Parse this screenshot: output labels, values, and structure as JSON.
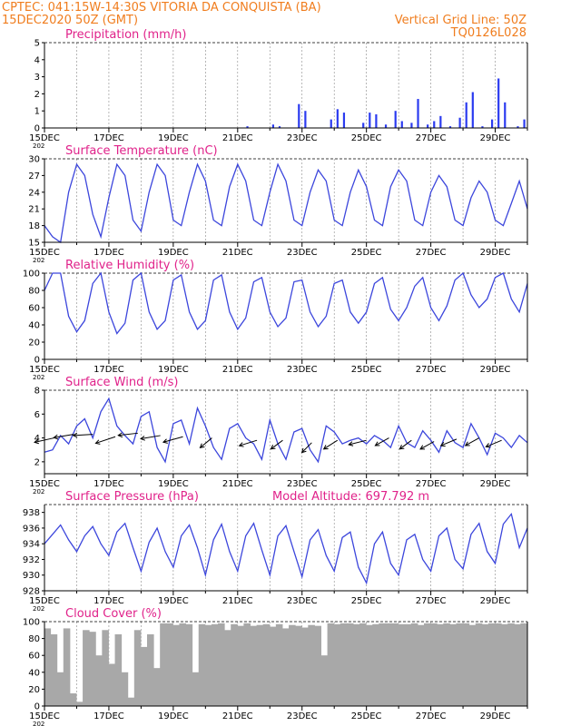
{
  "header": {
    "line1": "CPTEC:   041:15W-14:30S   VITORIA DA CONQUISTA (BA)",
    "line2_left": "15DEC2020 50Z (GMT)",
    "line2_right": "Vertical Grid Line: 50Z",
    "line3_right": "TQ0126L028"
  },
  "x_axis": {
    "labels": [
      "15DEC",
      "17DEC",
      "19DEC",
      "21DEC",
      "23DEC",
      "25DEC",
      "27DEC",
      "29DEC"
    ],
    "sub_label": "202",
    "days": 15
  },
  "colors": {
    "line": "#3c46dc",
    "bar": "#2b3bf0",
    "cloud": "#a8a8a8",
    "title": "#e0228a",
    "header": "#f07d1e",
    "wind_arrow": "#000000"
  },
  "chart_data": [
    {
      "type": "bar",
      "title": "Precipitation  (mm/h)",
      "ylim": [
        0,
        5
      ],
      "yticks": [
        0,
        1,
        2,
        3,
        4,
        5
      ],
      "x": [
        6.3,
        7.1,
        7.3,
        7.9,
        8.1,
        8.9,
        9.1,
        9.3,
        9.9,
        10.1,
        10.3,
        10.6,
        10.9,
        11.1,
        11.4,
        11.6,
        11.9,
        12.1,
        12.3,
        12.6,
        12.9,
        13.1,
        13.3,
        13.6,
        13.9,
        14.1,
        14.3,
        14.7,
        14.9
      ],
      "values": [
        0.1,
        0.2,
        0.1,
        1.4,
        1.0,
        0.5,
        1.1,
        0.9,
        0.3,
        0.9,
        0.8,
        0.2,
        1.0,
        0.4,
        0.3,
        1.7,
        0.2,
        0.4,
        0.7,
        0.1,
        0.6,
        1.5,
        2.1,
        0.1,
        0.5,
        2.9,
        1.5,
        0.1,
        0.5
      ]
    },
    {
      "type": "line",
      "title": "Surface Temperature (nC)",
      "ylim": [
        15,
        30
      ],
      "yticks": [
        15,
        18,
        21,
        24,
        27,
        30
      ],
      "x": [
        0,
        0.25,
        0.5,
        0.75,
        1,
        1.25,
        1.5,
        1.75,
        2,
        2.25,
        2.5,
        2.75,
        3,
        3.25,
        3.5,
        3.75,
        4,
        4.25,
        4.5,
        4.75,
        5,
        5.25,
        5.5,
        5.75,
        6,
        6.25,
        6.5,
        6.75,
        7,
        7.25,
        7.5,
        7.75,
        8,
        8.25,
        8.5,
        8.75,
        9,
        9.25,
        9.5,
        9.75,
        10,
        10.25,
        10.5,
        10.75,
        11,
        11.25,
        11.5,
        11.75,
        12,
        12.25,
        12.5,
        12.75,
        13,
        13.25,
        13.5,
        13.75,
        14,
        14.25,
        14.5,
        14.75,
        15
      ],
      "values": [
        18,
        16,
        15,
        24,
        29,
        27,
        20,
        16,
        23,
        29,
        27,
        19,
        17,
        24,
        29,
        27,
        19,
        18,
        24,
        29,
        26,
        19,
        18,
        25,
        29,
        26,
        19,
        18,
        24,
        29,
        26,
        19,
        18,
        24,
        28,
        26,
        19,
        18,
        24,
        28,
        25,
        19,
        18,
        25,
        28,
        26,
        19,
        18,
        24,
        27,
        25,
        19,
        18,
        23,
        26,
        24,
        19,
        18,
        22,
        26,
        21
      ]
    },
    {
      "type": "line",
      "title": "Relative Humidity  (%)",
      "ylim": [
        0,
        100
      ],
      "yticks": [
        0,
        20,
        40,
        60,
        80,
        100
      ],
      "x": [
        0,
        0.25,
        0.5,
        0.75,
        1,
        1.25,
        1.5,
        1.75,
        2,
        2.25,
        2.5,
        2.75,
        3,
        3.25,
        3.5,
        3.75,
        4,
        4.25,
        4.5,
        4.75,
        5,
        5.25,
        5.5,
        5.75,
        6,
        6.25,
        6.5,
        6.75,
        7,
        7.25,
        7.5,
        7.75,
        8,
        8.25,
        8.5,
        8.75,
        9,
        9.25,
        9.5,
        9.75,
        10,
        10.25,
        10.5,
        10.75,
        11,
        11.25,
        11.5,
        11.75,
        12,
        12.25,
        12.5,
        12.75,
        13,
        13.25,
        13.5,
        13.75,
        14,
        14.25,
        14.5,
        14.75,
        15
      ],
      "values": [
        80,
        100,
        100,
        50,
        32,
        45,
        88,
        100,
        55,
        30,
        42,
        92,
        100,
        55,
        35,
        45,
        92,
        98,
        55,
        35,
        45,
        92,
        98,
        55,
        35,
        48,
        90,
        95,
        55,
        38,
        48,
        90,
        92,
        55,
        38,
        50,
        88,
        92,
        55,
        42,
        55,
        88,
        95,
        58,
        45,
        60,
        85,
        95,
        60,
        45,
        62,
        92,
        100,
        75,
        60,
        70,
        95,
        100,
        70,
        55,
        88
      ]
    },
    {
      "type": "line",
      "title": "Surface Wind  (m/s)",
      "ylim": [
        1,
        8
      ],
      "yticks": [
        2,
        4,
        6,
        8
      ],
      "x": [
        0,
        0.25,
        0.5,
        0.75,
        1,
        1.25,
        1.5,
        1.75,
        2,
        2.25,
        2.5,
        2.75,
        3,
        3.25,
        3.5,
        3.75,
        4,
        4.25,
        4.5,
        4.75,
        5,
        5.25,
        5.5,
        5.75,
        6,
        6.25,
        6.5,
        6.75,
        7,
        7.25,
        7.5,
        7.75,
        8,
        8.25,
        8.5,
        8.75,
        9,
        9.25,
        9.5,
        9.75,
        10,
        10.25,
        10.5,
        10.75,
        11,
        11.25,
        11.5,
        11.75,
        12,
        12.25,
        12.5,
        12.75,
        13,
        13.25,
        13.5,
        13.75,
        14,
        14.25,
        14.5,
        14.75,
        15
      ],
      "values": [
        2.8,
        3.0,
        4.2,
        3.5,
        5.0,
        5.6,
        4.0,
        6.2,
        7.3,
        5.0,
        4.2,
        3.5,
        5.8,
        6.2,
        3.2,
        2.0,
        5.2,
        5.5,
        3.5,
        6.5,
        5.0,
        3.2,
        2.2,
        4.8,
        5.2,
        4.0,
        3.5,
        2.2,
        5.5,
        3.5,
        2.2,
        4.5,
        4.8,
        3.0,
        2.0,
        5.0,
        4.5,
        3.5,
        3.8,
        4.0,
        3.5,
        4.2,
        3.8,
        3.2,
        5.0,
        3.6,
        3.2,
        4.6,
        3.8,
        2.8,
        4.6,
        3.6,
        3.2,
        5.2,
        4.0,
        2.6,
        4.4,
        4.0,
        3.2,
        4.2,
        3.6
      ],
      "arrows": [
        {
          "x": 0.3,
          "y": 4.0,
          "u": 1.0,
          "v": 0.4
        },
        {
          "x": 0.9,
          "y": 4.3,
          "u": 1.0,
          "v": 0.3
        },
        {
          "x": 1.5,
          "y": 4.3,
          "u": 1.0,
          "v": 0.1
        },
        {
          "x": 2.2,
          "y": 4.1,
          "u": 1.0,
          "v": 0.6
        },
        {
          "x": 2.9,
          "y": 4.4,
          "u": 1.0,
          "v": 0.2
        },
        {
          "x": 3.6,
          "y": 4.2,
          "u": 1.0,
          "v": 0.3
        },
        {
          "x": 4.3,
          "y": 4.1,
          "u": 1.0,
          "v": 0.5
        },
        {
          "x": 5.2,
          "y": 4.0,
          "u": 0.6,
          "v": 0.9
        },
        {
          "x": 6.6,
          "y": 3.8,
          "u": 0.9,
          "v": 0.5
        },
        {
          "x": 7.4,
          "y": 3.8,
          "u": 0.6,
          "v": 0.8
        },
        {
          "x": 8.3,
          "y": 3.6,
          "u": 0.5,
          "v": 0.9
        },
        {
          "x": 9.1,
          "y": 3.8,
          "u": 0.7,
          "v": 0.8
        },
        {
          "x": 10.0,
          "y": 3.8,
          "u": 0.9,
          "v": 0.4
        },
        {
          "x": 10.7,
          "y": 4.0,
          "u": 0.7,
          "v": 0.7
        },
        {
          "x": 11.4,
          "y": 3.8,
          "u": 0.6,
          "v": 0.8
        },
        {
          "x": 12.1,
          "y": 3.7,
          "u": 0.7,
          "v": 0.7
        },
        {
          "x": 12.8,
          "y": 3.9,
          "u": 0.8,
          "v": 0.6
        },
        {
          "x": 13.5,
          "y": 4.0,
          "u": 0.7,
          "v": 0.7
        },
        {
          "x": 14.2,
          "y": 3.8,
          "u": 0.8,
          "v": 0.6
        }
      ]
    },
    {
      "type": "line",
      "title": "Surface Pressure (hPa)",
      "subtitle": "Model Altitude: 697.792  m",
      "ylim": [
        928,
        939
      ],
      "yticks": [
        928,
        930,
        932,
        934,
        936,
        938
      ],
      "x": [
        0,
        0.25,
        0.5,
        0.75,
        1,
        1.25,
        1.5,
        1.75,
        2,
        2.25,
        2.5,
        2.75,
        3,
        3.25,
        3.5,
        3.75,
        4,
        4.25,
        4.5,
        4.75,
        5,
        5.25,
        5.5,
        5.75,
        6,
        6.25,
        6.5,
        6.75,
        7,
        7.25,
        7.5,
        7.75,
        8,
        8.25,
        8.5,
        8.75,
        9,
        9.25,
        9.5,
        9.75,
        10,
        10.25,
        10.5,
        10.75,
        11,
        11.25,
        11.5,
        11.75,
        12,
        12.25,
        12.5,
        12.75,
        13,
        13.25,
        13.5,
        13.75,
        14,
        14.25,
        14.5,
        14.75,
        15
      ],
      "values": [
        934.0,
        935.2,
        936.4,
        934.5,
        933.0,
        935.0,
        936.2,
        934.0,
        932.5,
        935.5,
        936.6,
        933.5,
        930.5,
        934.2,
        936.0,
        933.0,
        931.0,
        935.0,
        936.4,
        933.5,
        930.0,
        934.5,
        936.5,
        933.0,
        930.5,
        935.0,
        936.6,
        933.2,
        930.0,
        935.0,
        936.3,
        933.0,
        929.8,
        934.5,
        935.8,
        932.5,
        930.5,
        934.8,
        935.5,
        931.0,
        929.0,
        934.0,
        935.5,
        931.5,
        930.0,
        934.5,
        935.2,
        932.0,
        930.5,
        935.0,
        936.0,
        932.0,
        930.8,
        935.2,
        936.6,
        933.0,
        931.5,
        936.5,
        937.8,
        933.5,
        936.0
      ]
    },
    {
      "type": "bar",
      "title": "Cloud Cover  (%)",
      "ylim": [
        0,
        100
      ],
      "yticks": [
        0,
        20,
        40,
        60,
        80,
        100
      ],
      "x": [
        0.2,
        0.4,
        0.6,
        0.8,
        1.0,
        1.2,
        1.4,
        1.6,
        1.8,
        2.0,
        2.2,
        2.4,
        2.6,
        2.8,
        3.0,
        3.2,
        3.4,
        3.6,
        3.8,
        4.0,
        4.2,
        4.4,
        4.6,
        4.8,
        5.0,
        5.2,
        5.4,
        5.6,
        5.8,
        6.0,
        6.2,
        6.4,
        6.6,
        6.8,
        7.0,
        7.2,
        7.4,
        7.6,
        7.8,
        8.0,
        8.2,
        8.4,
        8.6,
        8.8,
        9.0,
        9.2,
        9.4,
        9.6,
        9.8,
        10.0,
        10.2,
        10.4,
        10.6,
        10.8,
        11.0,
        11.2,
        11.4,
        11.6,
        11.8,
        12.0,
        12.2,
        12.4,
        12.6,
        12.8,
        13.0,
        13.2,
        13.4,
        13.6,
        13.8,
        14.0,
        14.2,
        14.4,
        14.6,
        14.8,
        15.0
      ],
      "values": [
        92,
        85,
        40,
        92,
        15,
        5,
        90,
        88,
        60,
        90,
        50,
        85,
        40,
        10,
        90,
        70,
        85,
        45,
        98,
        98,
        96,
        98,
        97,
        40,
        97,
        96,
        97,
        98,
        90,
        97,
        95,
        98,
        95,
        96,
        97,
        94,
        97,
        92,
        96,
        95,
        93,
        96,
        95,
        60,
        98,
        97,
        98,
        98,
        97,
        98,
        96,
        97,
        98,
        98,
        98,
        97,
        97,
        98,
        96,
        98,
        98,
        97,
        98,
        97,
        98,
        98,
        96,
        98,
        97,
        98,
        98,
        97,
        98,
        97,
        98
      ]
    }
  ]
}
